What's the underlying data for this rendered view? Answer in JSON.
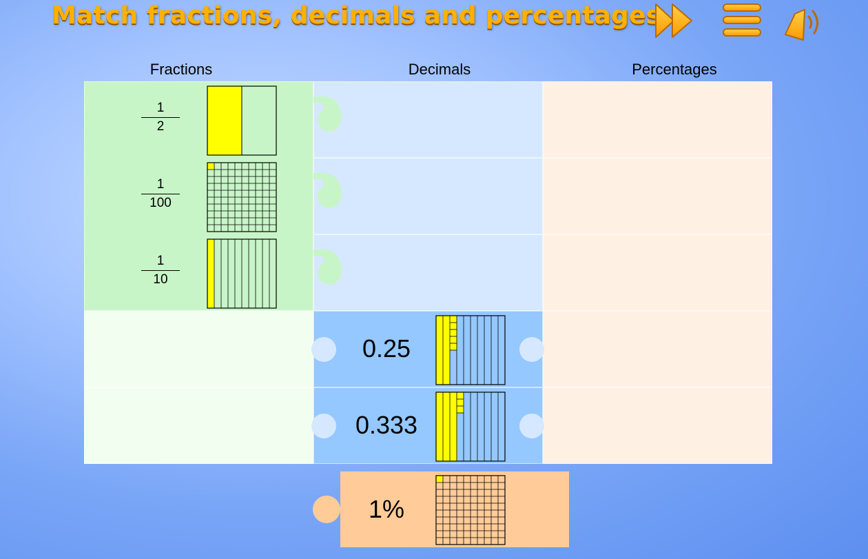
{
  "title": "Match fractions, decimals and percentages",
  "toolbar": {
    "skip_icon": "fast-forward-icon",
    "menu_icon": "menu-icon",
    "sound_icon": "speaker-icon"
  },
  "columns": [
    "Fractions",
    "Decimals",
    "Percentages"
  ],
  "colors": {
    "title": "#ffb000",
    "fraction_tile": "#c8f5c8",
    "fraction_empty": "#f2fff0",
    "decimal_slot": "#d6e8ff",
    "decimal_tile": "#94c8ff",
    "percent_slot": "#fff0e4",
    "percent_tile": "#ffcc99",
    "shade": "#ffff00"
  },
  "fractions": [
    {
      "numerator": "1",
      "denominator": "2",
      "model": "halves",
      "shaded": 1,
      "parts": 2
    },
    {
      "numerator": "1",
      "denominator": "100",
      "model": "hundredths",
      "shaded": 1,
      "parts": 100
    },
    {
      "numerator": "1",
      "denominator": "10",
      "model": "tenths",
      "shaded": 1,
      "parts": 10
    }
  ],
  "decimals": [
    {
      "value": "0.25",
      "shaded_fraction": 0.25
    },
    {
      "value": "0.333",
      "shaded_fraction": 0.333
    }
  ],
  "loose_tile": {
    "value": "1%",
    "shaded_fraction": 0.01
  }
}
